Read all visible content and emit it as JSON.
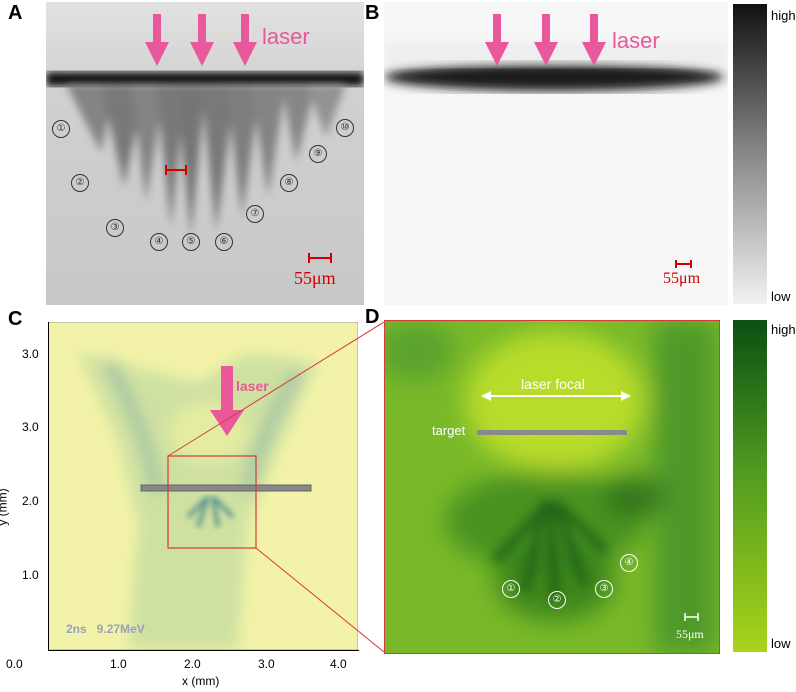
{
  "panels": {
    "A": {
      "label": "A",
      "laser": "laser",
      "markers": [
        "①",
        "②",
        "③",
        "④",
        "⑤",
        "⑥",
        "⑦",
        "⑧",
        "⑨",
        "⑩"
      ],
      "scale": "55μm"
    },
    "B": {
      "label": "B",
      "laser": "laser",
      "scale": "55μm",
      "colorbar_high": "high",
      "colorbar_low": "low"
    },
    "C": {
      "label": "C",
      "laser": "laser",
      "info": "2ns   9.27MeV",
      "xlabel": "x (mm)",
      "ylabel": "y (mm)",
      "xticks": [
        "0.0",
        "1.0",
        "2.0",
        "3.0",
        "4.0"
      ],
      "yticks": [
        "3.0",
        "3.0",
        "2.0",
        "1.0"
      ]
    },
    "D": {
      "label": "D",
      "focal": "laser focal",
      "target": "target",
      "markers": [
        "①",
        "②",
        "③",
        "④"
      ],
      "scale": "55μm",
      "colorbar_high": "high",
      "colorbar_low": "low"
    }
  },
  "colors": {
    "laser_pink": "#e8589a",
    "scale_red": "#d40000",
    "green_dark": "#0b4f12",
    "green_light": "#a9d41a",
    "radiograph_bg": "#d6d6d6"
  }
}
